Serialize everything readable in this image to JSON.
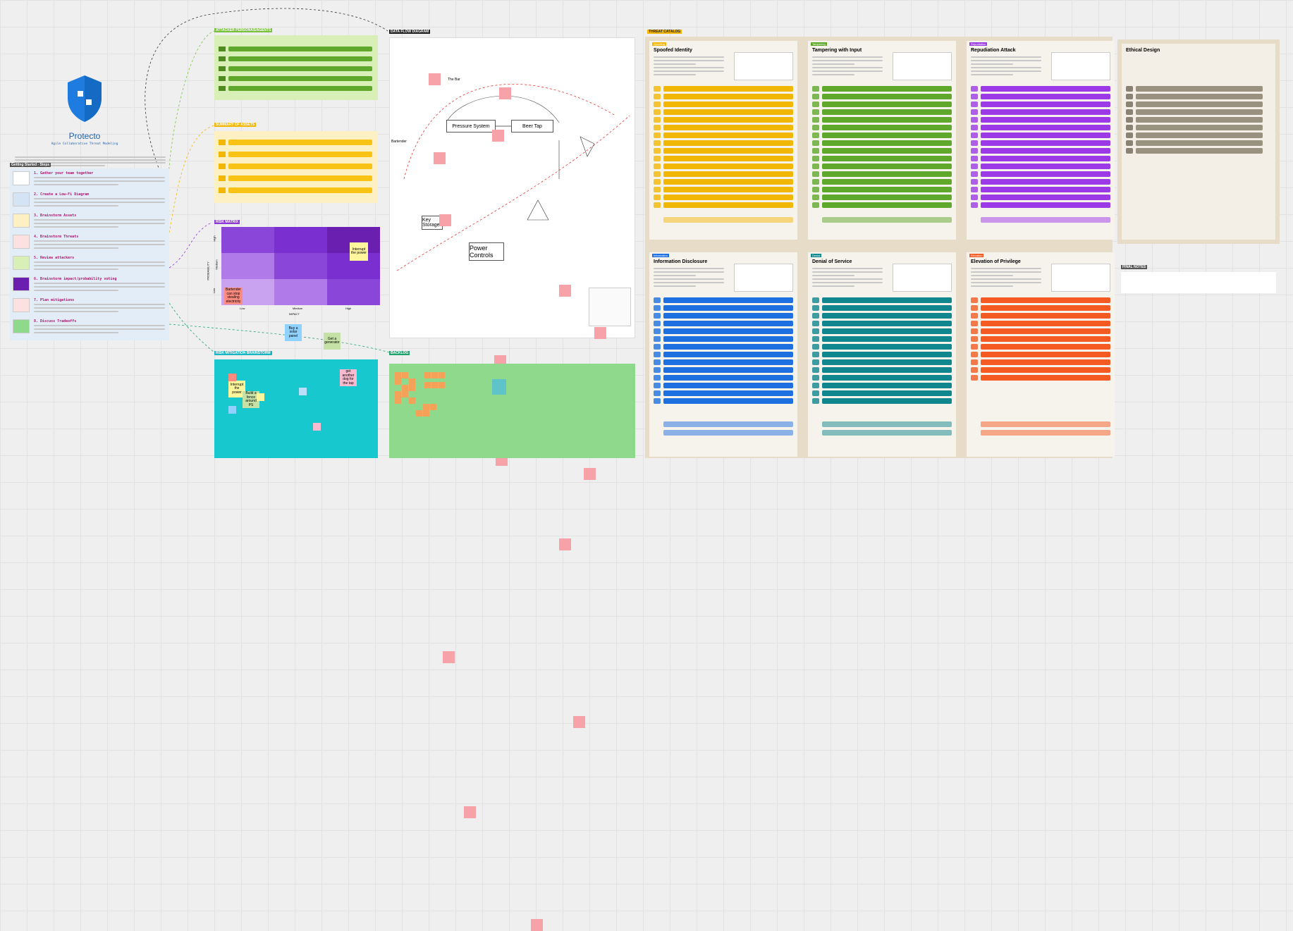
{
  "intro": {
    "title": "Protecto",
    "subtitle": "Agile Collaborative Threat Modeling",
    "steps_heading": "Getting Started - Steps",
    "steps": [
      "1. Gather your team together",
      "2. Create a Low-Fi Diagram",
      "3. Brainstorm Assets",
      "4. Brainstorm Threats",
      "5. Review attackers",
      "6. Brainstorm impact/probability voting",
      "7. Plan mitigations",
      "8. Discuss Tradeoffs"
    ]
  },
  "frames": {
    "attackers": "ATTACKER PERSONAS/AGENTS",
    "assets": "SUMMARY OF ASSETS",
    "risk_matrix": "RISK MATRIX",
    "mitigation": "RISK MITIGATION BRAINSTORM",
    "dfd": "DATA FLOW DIAGRAM",
    "backlog": "BACKLOG",
    "catalog": "THREAT CATALOG",
    "final_notes": "FINAL NOTES"
  },
  "risk_matrix": {
    "x_label": "IMPACT",
    "y_label": "PROBABILITY",
    "x_levels": [
      "Low",
      "Medium",
      "High"
    ],
    "y_levels": [
      "High",
      "Medium",
      "Low"
    ],
    "stickies": [
      "Interrupt the power",
      "Bartender can stop stealing electricity"
    ]
  },
  "dfd": {
    "boundary": "The Bar",
    "actor": "Bartender",
    "processes": [
      "Pressure System",
      "Beer Tap",
      "Key Storage",
      "Power Controls"
    ]
  },
  "mitigation": {
    "stickies": [
      "Interrupt the power",
      "Buy a solar panel",
      "Build a fence around PS",
      "Get a generator",
      "get another dog for the tap"
    ]
  },
  "catalog": {
    "panels": [
      {
        "tag": "Spoofing",
        "title": "Spoofed Identity"
      },
      {
        "tag": "Tampering",
        "title": "Tampering with Input"
      },
      {
        "tag": "Repudiation",
        "title": "Repudiation Attack"
      },
      {
        "tag": "Information",
        "title": "Information Disclosure"
      },
      {
        "tag": "Denial",
        "title": "Denial of Service"
      },
      {
        "tag": "Elevation",
        "title": "Elevation of Privilege"
      }
    ]
  },
  "ethical": {
    "title": "Ethical Design"
  }
}
